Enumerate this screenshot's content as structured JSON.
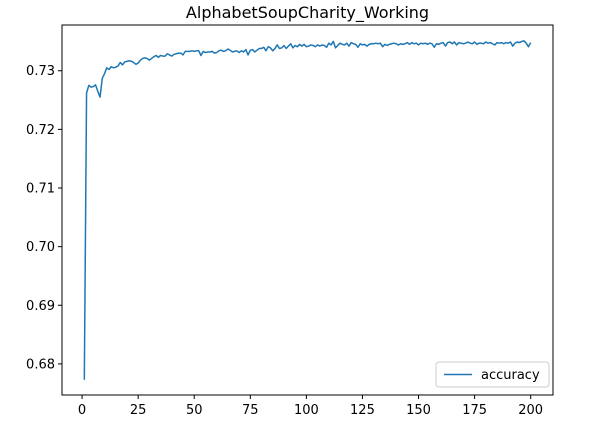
{
  "chart_data": {
    "type": "line",
    "title": "AlphabetSoupCharity_Working",
    "xlabel": "",
    "ylabel": "",
    "xlim": [
      -8.95,
      209.95
    ],
    "ylim": [
      0.6747,
      0.7378
    ],
    "xticks": [
      0,
      25,
      50,
      75,
      100,
      125,
      150,
      175,
      200
    ],
    "yticks": [
      0.68,
      0.69,
      0.7,
      0.71,
      0.72,
      0.73
    ],
    "ytick_labels": [
      "0.68",
      "0.69",
      "0.70",
      "0.71",
      "0.72",
      "0.73"
    ],
    "grid": false,
    "legend": {
      "position": "lower-right",
      "entries": [
        "accuracy"
      ]
    },
    "series": [
      {
        "name": "accuracy",
        "color": "#1f77b4",
        "x": [
          1,
          2,
          3,
          4,
          5,
          6,
          7,
          8,
          9,
          10,
          11,
          12,
          13,
          14,
          15,
          16,
          17,
          18,
          19,
          20,
          21,
          22,
          23,
          24,
          25,
          26,
          27,
          28,
          29,
          30,
          31,
          32,
          33,
          34,
          35,
          36,
          37,
          38,
          39,
          40,
          41,
          42,
          43,
          44,
          45,
          46,
          47,
          48,
          49,
          50,
          51,
          52,
          53,
          54,
          55,
          56,
          57,
          58,
          59,
          60,
          61,
          62,
          63,
          64,
          65,
          66,
          67,
          68,
          69,
          70,
          71,
          72,
          73,
          74,
          75,
          76,
          77,
          78,
          79,
          80,
          81,
          82,
          83,
          84,
          85,
          86,
          87,
          88,
          89,
          90,
          91,
          92,
          93,
          94,
          95,
          96,
          97,
          98,
          99,
          100,
          101,
          102,
          103,
          104,
          105,
          106,
          107,
          108,
          109,
          110,
          111,
          112,
          113,
          114,
          115,
          116,
          117,
          118,
          119,
          120,
          121,
          122,
          123,
          124,
          125,
          126,
          127,
          128,
          129,
          130,
          131,
          132,
          133,
          134,
          135,
          136,
          137,
          138,
          139,
          140,
          141,
          142,
          143,
          144,
          145,
          146,
          147,
          148,
          149,
          150,
          151,
          152,
          153,
          154,
          155,
          156,
          157,
          158,
          159,
          160,
          161,
          162,
          163,
          164,
          165,
          166,
          167,
          168,
          169,
          170,
          171,
          172,
          173,
          174,
          175,
          176,
          177,
          178,
          179,
          180,
          181,
          182,
          183,
          184,
          185,
          186,
          187,
          188,
          189,
          190,
          191,
          192,
          193,
          194,
          195,
          196,
          197,
          198,
          199,
          200
        ],
        "values": [
          0.6773,
          0.7262,
          0.7275,
          0.7272,
          0.7273,
          0.7276,
          0.7265,
          0.7255,
          0.7287,
          0.7295,
          0.7305,
          0.7302,
          0.7307,
          0.7305,
          0.7306,
          0.7308,
          0.7314,
          0.731,
          0.7315,
          0.7316,
          0.7317,
          0.7316,
          0.7314,
          0.7311,
          0.7313,
          0.7318,
          0.7321,
          0.7322,
          0.7321,
          0.7318,
          0.7321,
          0.7324,
          0.7326,
          0.7323,
          0.7326,
          0.7325,
          0.7325,
          0.7329,
          0.7327,
          0.7325,
          0.7328,
          0.7329,
          0.733,
          0.733,
          0.7327,
          0.7333,
          0.7333,
          0.7333,
          0.7334,
          0.7333,
          0.7334,
          0.7334,
          0.7326,
          0.7333,
          0.7331,
          0.7332,
          0.7332,
          0.7333,
          0.733,
          0.7331,
          0.7334,
          0.7335,
          0.7333,
          0.7334,
          0.7337,
          0.7335,
          0.7332,
          0.7333,
          0.7334,
          0.7331,
          0.7334,
          0.7332,
          0.7336,
          0.7327,
          0.7335,
          0.7336,
          0.7332,
          0.7335,
          0.7338,
          0.7338,
          0.734,
          0.7334,
          0.7341,
          0.7339,
          0.7334,
          0.7338,
          0.7344,
          0.7338,
          0.7339,
          0.7343,
          0.7338,
          0.7342,
          0.7346,
          0.7339,
          0.7343,
          0.7341,
          0.7345,
          0.7342,
          0.7345,
          0.7341,
          0.7342,
          0.7344,
          0.7343,
          0.7341,
          0.7344,
          0.7342,
          0.7344,
          0.7343,
          0.734,
          0.7347,
          0.7344,
          0.735,
          0.7339,
          0.7343,
          0.7347,
          0.7345,
          0.7344,
          0.7347,
          0.7342,
          0.7348,
          0.7346,
          0.7345,
          0.734,
          0.7346,
          0.7344,
          0.7345,
          0.7342,
          0.7345,
          0.7346,
          0.7346,
          0.7347,
          0.7346,
          0.7347,
          0.7341,
          0.7345,
          0.7343,
          0.7345,
          0.7346,
          0.7347,
          0.7346,
          0.7344,
          0.7346,
          0.7345,
          0.7346,
          0.7348,
          0.7345,
          0.7348,
          0.7346,
          0.7347,
          0.7344,
          0.7347,
          0.7346,
          0.7347,
          0.7345,
          0.7347,
          0.7346,
          0.734,
          0.7346,
          0.7345,
          0.7347,
          0.7348,
          0.7342,
          0.7348,
          0.7349,
          0.7346,
          0.7349,
          0.7344,
          0.7348,
          0.7347,
          0.7346,
          0.7347,
          0.7349,
          0.7347,
          0.7346,
          0.7349,
          0.7345,
          0.7347,
          0.7347,
          0.7346,
          0.7349,
          0.7347,
          0.7348,
          0.7346,
          0.7344,
          0.7348,
          0.7347,
          0.7348,
          0.7346,
          0.7348,
          0.7347,
          0.7349,
          0.7342,
          0.7347,
          0.7349,
          0.7348,
          0.735,
          0.7351,
          0.7347,
          0.7341,
          0.7348
        ]
      }
    ]
  }
}
